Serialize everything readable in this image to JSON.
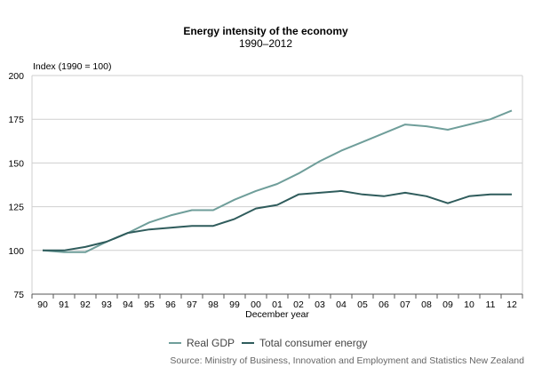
{
  "chart_data": {
    "type": "line",
    "title": "Energy intensity of the economy",
    "subtitle": "1990–2012",
    "ylabel": "Index (1990 = 100)",
    "xlabel": "December year",
    "categories": [
      "90",
      "91",
      "92",
      "93",
      "94",
      "95",
      "96",
      "97",
      "98",
      "99",
      "00",
      "01",
      "02",
      "03",
      "04",
      "05",
      "06",
      "07",
      "08",
      "09",
      "10",
      "11",
      "12"
    ],
    "ylim": [
      75,
      200
    ],
    "yticks": [
      75,
      100,
      125,
      150,
      175,
      200
    ],
    "grid": true,
    "legend_position": "bottom",
    "series": [
      {
        "name": "Real GDP",
        "color": "#6f9e9a",
        "values": [
          100,
          99,
          99,
          105,
          110,
          116,
          120,
          123,
          123,
          129,
          134,
          138,
          144,
          151,
          157,
          162,
          167,
          172,
          171,
          169,
          172,
          175,
          180
        ]
      },
      {
        "name": "Total consumer energy",
        "color": "#2f5c5c",
        "values": [
          100,
          100,
          102,
          105,
          110,
          112,
          113,
          114,
          114,
          118,
          124,
          126,
          132,
          133,
          134,
          132,
          131,
          133,
          131,
          127,
          131,
          132,
          132
        ]
      }
    ],
    "source": "Source: Ministry of Business, Innovation and Employment and Statistics New Zealand"
  }
}
